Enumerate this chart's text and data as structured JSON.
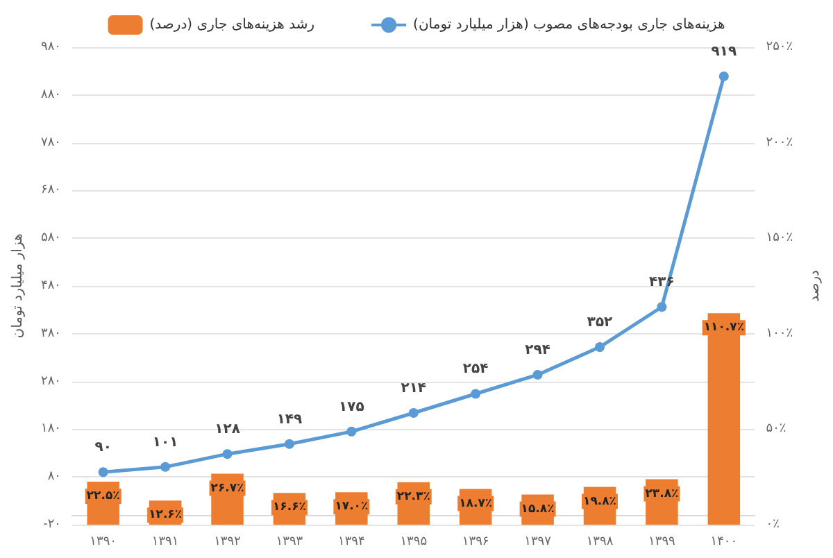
{
  "chart_data": {
    "type": "bar",
    "categories": [
      "۱۳۹۰",
      "۱۳۹۱",
      "۱۳۹۲",
      "۱۳۹۳",
      "۱۳۹۴",
      "۱۳۹۵",
      "۱۳۹۶",
      "۱۳۹۷",
      "۱۳۹۸",
      "۱۳۹۹",
      "۱۴۰۰"
    ],
    "ylabel": "هزار میلیارد تومان",
    "y2label": "درصد",
    "series": [
      {
        "name": "رشد هزینه‌های جاری (درصد)",
        "axis": "y2",
        "color": "#ed7d31",
        "values": [
          22.5,
          12.6,
          26.7,
          16.6,
          17.0,
          22.3,
          18.7,
          15.8,
          19.8,
          23.8,
          110.7
        ],
        "value_labels": [
          "۲۲.۵٪",
          "۱۲.۶٪",
          "۲۶.۷٪",
          "۱۶.۶٪",
          "۱۷.۰٪",
          "۲۲.۳٪",
          "۱۸.۷٪",
          "۱۵.۸٪",
          "۱۹.۸٪",
          "۲۳.۸٪",
          "۱۱۰.۷٪"
        ]
      },
      {
        "name": "هزینه‌های جاری بودجه‌های مصوب (هزار میلیارد تومان)",
        "type": "line",
        "color": "#5b9bd5",
        "marker": "circle",
        "values": [
          90,
          101,
          128,
          149,
          175,
          214,
          254,
          294,
          352,
          436,
          919
        ],
        "value_labels": [
          "۹۰",
          "۱۰۱",
          "۱۲۸",
          "۱۴۹",
          "۱۷۵",
          "۲۱۴",
          "۲۵۴",
          "۲۹۴",
          "۳۵۲",
          "۴۳۶",
          "۹۱۹"
        ]
      }
    ],
    "ylim": [
      -20,
      980
    ],
    "yticks": [
      {
        "value": -20,
        "label": "-۲۰"
      },
      {
        "value": 80,
        "label": "۸۰"
      },
      {
        "value": 180,
        "label": "۱۸۰"
      },
      {
        "value": 280,
        "label": "۲۸۰"
      },
      {
        "value": 380,
        "label": "۳۸۰"
      },
      {
        "value": 480,
        "label": "۴۸۰"
      },
      {
        "value": 580,
        "label": "۵۸۰"
      },
      {
        "value": 680,
        "label": "۶۸۰"
      },
      {
        "value": 780,
        "label": "۷۸۰"
      },
      {
        "value": 880,
        "label": "۸۸۰"
      },
      {
        "value": 980,
        "label": "۹۸۰"
      }
    ],
    "y2lim": [
      0,
      250
    ],
    "y2ticks": [
      {
        "value": 0,
        "label": "۰٪"
      },
      {
        "value": 50,
        "label": "۵۰٪"
      },
      {
        "value": 100,
        "label": "۱۰۰٪"
      },
      {
        "value": 150,
        "label": "۱۵۰٪"
      },
      {
        "value": 200,
        "label": "۲۰۰٪"
      },
      {
        "value": 250,
        "label": "۲۵۰٪"
      }
    ],
    "grid": "y",
    "legend": "top"
  }
}
